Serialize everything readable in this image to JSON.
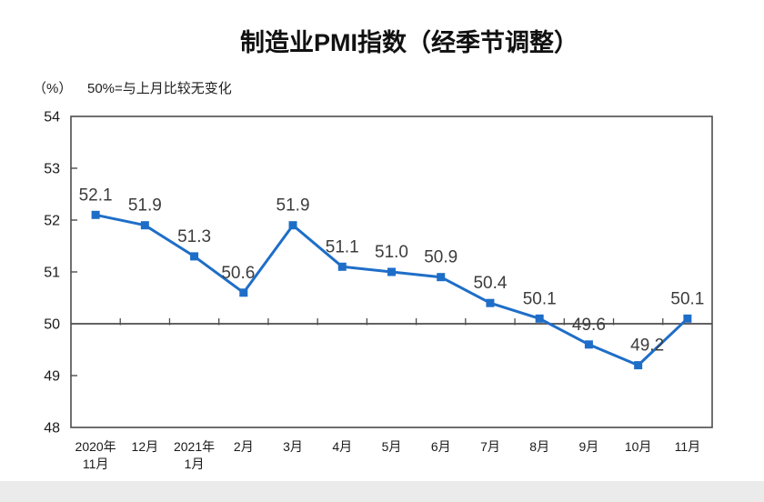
{
  "header": {
    "title": "制造业PMI指数（经季节调整）"
  },
  "chart": {
    "unit_label": "（%）",
    "note": "50%=与上月比较无变化"
  },
  "chart_data": {
    "type": "line",
    "title": "制造业PMI指数（经季节调整）",
    "ylabel": "%",
    "annotation": "50%=与上月比较无变化",
    "categories": [
      "2020年\n11月",
      "12月",
      "2021年\n1月",
      "2月",
      "3月",
      "4月",
      "5月",
      "6月",
      "7月",
      "8月",
      "9月",
      "10月",
      "11月"
    ],
    "values": [
      52.1,
      51.9,
      51.3,
      50.6,
      51.9,
      51.1,
      51.0,
      50.9,
      50.4,
      50.1,
      49.6,
      49.2,
      50.1
    ],
    "ylim": [
      48,
      54
    ],
    "ytick_step": 1,
    "reference_line": 50,
    "grid": false,
    "legend": null,
    "colors": {
      "line": "#1e6ec8",
      "axis": "#4d4d4d",
      "data_label": "#3c3c3c",
      "tick_text": "#1a1a1a"
    }
  }
}
